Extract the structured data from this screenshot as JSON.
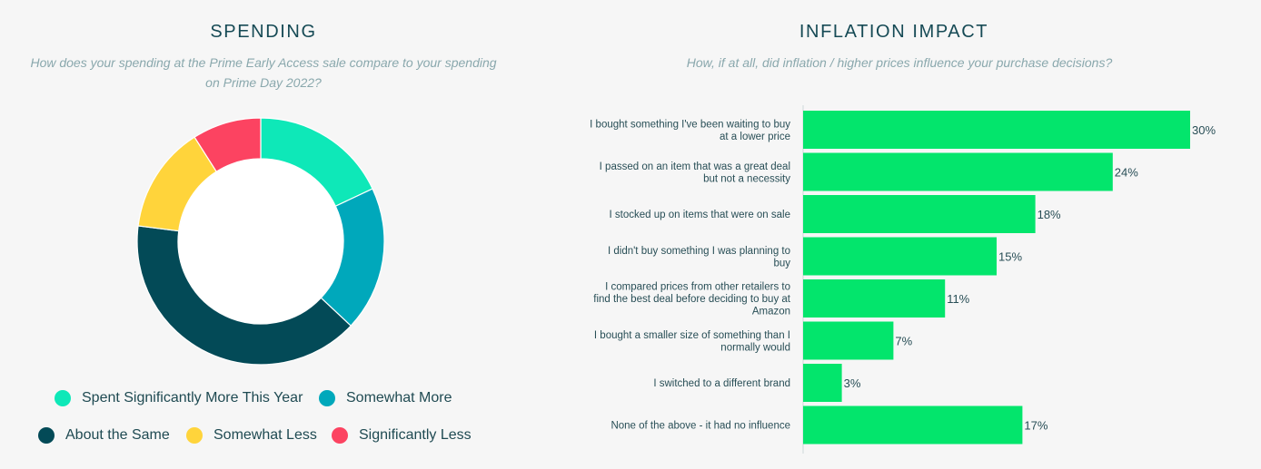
{
  "spending": {
    "title": "SPENDING",
    "subtitle": "How does your spending at the Prime Early Access sale compare to your spending on Prime Day 2022?"
  },
  "inflation": {
    "title": "INFLATION IMPACT",
    "subtitle": "How, if at all, did inflation / higher prices influence your  purchase decisions?"
  },
  "chart_data": [
    {
      "type": "pie",
      "title": "SPENDING",
      "subtitle": "How does your spending at the Prime Early Access sale compare to your spending on Prime Day 2022?",
      "categories": [
        "Spent Significantly More This Year",
        "Somewhat More",
        "About the Same",
        "Somewhat Less",
        "Significantly Less"
      ],
      "values": [
        18,
        19,
        40,
        14,
        9
      ],
      "colors": [
        "#0ee8b8",
        "#00a8bb",
        "#034a57",
        "#ffd43b",
        "#fc4361"
      ],
      "legend_position": "bottom"
    },
    {
      "type": "bar",
      "orientation": "horizontal",
      "title": "INFLATION IMPACT",
      "subtitle": "How, if at all, did inflation / higher prices influence your  purchase decisions?",
      "categories": [
        [
          "I bought something I've been waiting to buy",
          "at a lower price"
        ],
        [
          "I passed on an item that was a great deal",
          "but not a necessity"
        ],
        [
          "I stocked up on items that were on sale"
        ],
        [
          "I didn't buy something I was planning to",
          "buy"
        ],
        [
          "I compared prices from other retailers to",
          "find the best deal before deciding to buy at",
          "Amazon"
        ],
        [
          "I bought a smaller size of something than I",
          "normally would"
        ],
        [
          "I switched to a different brand"
        ],
        [
          "None of the above - it had no influence"
        ]
      ],
      "values": [
        30,
        24,
        18,
        15,
        11,
        7,
        3,
        17
      ],
      "value_labels": [
        "30%",
        "24%",
        "18%",
        "15%",
        "11%",
        "7%",
        "3%",
        "17%"
      ],
      "xlim": [
        0,
        30
      ],
      "bar_color": "#03e56c",
      "grid": false
    }
  ]
}
